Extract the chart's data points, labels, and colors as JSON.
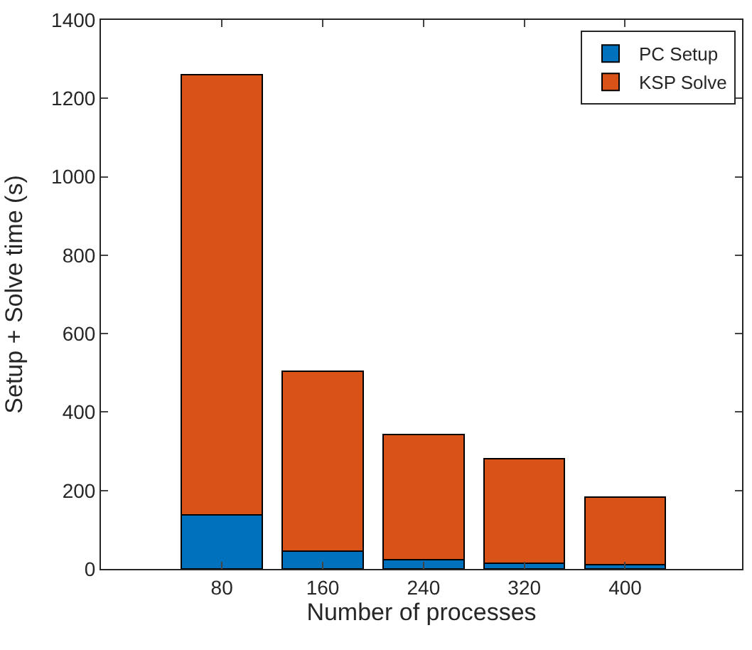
{
  "chart_data": {
    "type": "bar",
    "stacked": true,
    "xlabel": "Number of processes",
    "ylabel": "Setup + Solve time (s)",
    "categories": [
      "80",
      "160",
      "240",
      "320",
      "400"
    ],
    "series": [
      {
        "name": "PC Setup",
        "color": "#0072bd",
        "values": [
          138,
          46,
          24,
          14,
          10
        ]
      },
      {
        "name": "KSP Solve",
        "color": "#d95319",
        "values": [
          1122,
          459,
          318,
          268,
          174
        ]
      }
    ],
    "ylim": [
      0,
      1400
    ],
    "yticks": [
      0,
      200,
      400,
      600,
      800,
      1000,
      1200,
      1400
    ],
    "legend": "top right"
  }
}
